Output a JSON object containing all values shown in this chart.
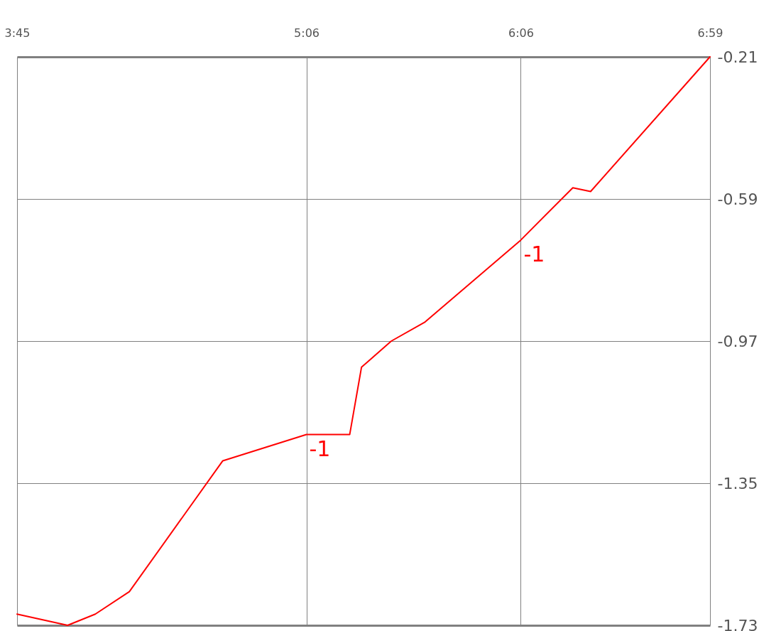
{
  "chart_data": {
    "type": "line",
    "x": [
      3.75,
      3.986,
      4.115,
      4.274,
      4.71,
      5.1,
      5.302,
      5.357,
      5.496,
      5.651,
      6.1,
      6.343,
      6.426,
      6.983
    ],
    "series": [
      {
        "color": "#ff0000",
        "values": [
          -1.7,
          -1.73,
          -1.7,
          -1.64,
          -1.29,
          -1.22,
          -1.22,
          -1.04,
          -0.97,
          -0.92,
          -0.7,
          -0.56,
          -0.57,
          -0.21
        ]
      }
    ],
    "xlim": [
      3.75,
      6.983
    ],
    "xticks": [
      {
        "value": 3.75,
        "label": "3:45"
      },
      {
        "value": 5.1,
        "label": "5:06"
      },
      {
        "value": 6.1,
        "label": "6:06"
      },
      {
        "value": 6.983,
        "label": "6:59"
      }
    ],
    "ylim": [
      -1.73,
      -0.21
    ],
    "yticks": [
      -0.21,
      -0.59,
      -0.97,
      -1.35,
      -1.73
    ],
    "grid": true,
    "annotations": [
      {
        "text": "-1",
        "x": 5.1,
        "y": -1.22
      },
      {
        "text": "-1",
        "x": 6.1,
        "y": -0.7
      }
    ]
  }
}
